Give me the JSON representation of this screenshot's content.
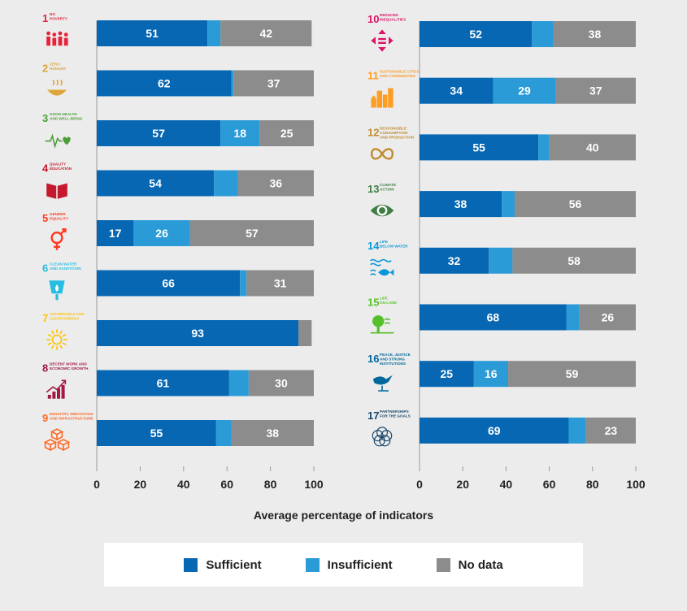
{
  "colors": {
    "sufficient": "#0767b2",
    "insufficient": "#2b9bd8",
    "no_data": "#8c8c8c",
    "axis": "#9a9a9a"
  },
  "xlabel": "Average percentage of indicators",
  "legend": [
    {
      "name": "Sufficient",
      "color": "#0767b2"
    },
    {
      "name": "Insufficient",
      "color": "#2b9bd8"
    },
    {
      "name": "No data",
      "color": "#8c8c8c"
    }
  ],
  "chart_data": [
    {
      "type": "bar",
      "orientation": "horizontal",
      "stacked": true,
      "xlim": [
        0,
        100
      ],
      "x_ticks": [
        0,
        20,
        40,
        60,
        80,
        100
      ],
      "xlabel": "Average percentage of indicators",
      "categories": [
        "1 No poverty",
        "2 Zero hunger",
        "3 Good health and well-being",
        "4 Quality education",
        "5 Gender equality",
        "6 Clean water and sanitation",
        "7 Affordable and clean energy",
        "8 Decent work and economic growth",
        "9 Industry, innovation and infrastructure"
      ],
      "series": [
        {
          "name": "Sufficient",
          "values": [
            51,
            62,
            57,
            54,
            17,
            66,
            93,
            61,
            55
          ]
        },
        {
          "name": "Insufficient",
          "values": [
            6,
            1,
            18,
            11,
            26,
            3,
            0,
            9,
            7
          ]
        },
        {
          "name": "No data",
          "values": [
            42,
            37,
            25,
            36,
            57,
            31,
            6,
            30,
            38
          ]
        }
      ],
      "data_labels": [
        [
          "51",
          "",
          "42"
        ],
        [
          "62",
          "",
          "37"
        ],
        [
          "57",
          "18",
          "25"
        ],
        [
          "54",
          "",
          "36"
        ],
        [
          "17",
          "26",
          "57"
        ],
        [
          "66",
          "",
          "31"
        ],
        [
          "93",
          "",
          ""
        ],
        [
          "61",
          "",
          "30"
        ],
        [
          "55",
          "",
          "38"
        ]
      ],
      "goals": [
        {
          "num": "1",
          "name": [
            "NO",
            "POVERTY"
          ],
          "color": "#e5243b",
          "icon": "family-icon"
        },
        {
          "num": "2",
          "name": [
            "ZERO",
            "HUNGER"
          ],
          "color": "#dda63a",
          "icon": "bowl-icon"
        },
        {
          "num": "3",
          "name": [
            "GOOD HEALTH",
            "AND WELL-BEING"
          ],
          "color": "#4c9f38",
          "icon": "heartbeat-icon"
        },
        {
          "num": "4",
          "name": [
            "QUALITY",
            "EDUCATION"
          ],
          "color": "#c5192d",
          "icon": "book-icon"
        },
        {
          "num": "5",
          "name": [
            "GENDER",
            "EQUALITY"
          ],
          "color": "#ff3a21",
          "icon": "gender-icon"
        },
        {
          "num": "6",
          "name": [
            "CLEAN WATER",
            "AND SANITATION"
          ],
          "color": "#26bde2",
          "icon": "water-drop-icon"
        },
        {
          "num": "7",
          "name": [
            "AFFORDABLE AND",
            "CLEAN ENERGY"
          ],
          "color": "#fcc30b",
          "icon": "sun-icon"
        },
        {
          "num": "8",
          "name": [
            "DECENT WORK AND",
            "ECONOMIC GROWTH"
          ],
          "color": "#a21942",
          "icon": "growth-chart-icon"
        },
        {
          "num": "9",
          "name": [
            "INDUSTRY, INNOVATION",
            "AND INFRASTRUCTURE"
          ],
          "color": "#fd6925",
          "icon": "cubes-icon"
        }
      ]
    },
    {
      "type": "bar",
      "orientation": "horizontal",
      "stacked": true,
      "xlim": [
        0,
        100
      ],
      "x_ticks": [
        0,
        20,
        40,
        60,
        80,
        100
      ],
      "xlabel": "Average percentage of indicators",
      "categories": [
        "10 Reduced inequalities",
        "11 Sustainable cities and communities",
        "12 Responsible consumption and production",
        "13 Climate action",
        "14 Life below water",
        "15 Life on land",
        "16 Peace, justice and strong institutions",
        "17 Partnerships for the goals"
      ],
      "series": [
        {
          "name": "Sufficient",
          "values": [
            52,
            34,
            55,
            38,
            32,
            68,
            25,
            69
          ]
        },
        {
          "name": "Insufficient",
          "values": [
            10,
            29,
            5,
            6,
            11,
            6,
            16,
            8
          ]
        },
        {
          "name": "No data",
          "values": [
            38,
            37,
            40,
            56,
            58,
            26,
            59,
            23
          ]
        }
      ],
      "data_labels": [
        [
          "52",
          "",
          "38"
        ],
        [
          "34",
          "29",
          "37"
        ],
        [
          "55",
          "",
          "40"
        ],
        [
          "38",
          "",
          "56"
        ],
        [
          "32",
          "",
          "58"
        ],
        [
          "68",
          "",
          "26"
        ],
        [
          "25",
          "16",
          "59"
        ],
        [
          "69",
          "",
          "23"
        ]
      ],
      "goals": [
        {
          "num": "10",
          "name": [
            "REDUCED",
            "INEQUALITIES"
          ],
          "color": "#dd1367",
          "icon": "arrows-icon"
        },
        {
          "num": "11",
          "name": [
            "SUSTAINABLE CITIES",
            "AND COMMUNITIES"
          ],
          "color": "#fd9d24",
          "icon": "city-icon"
        },
        {
          "num": "12",
          "name": [
            "RESPONSIBLE",
            "CONSUMPTION",
            "AND PRODUCTION"
          ],
          "color": "#bf8b2e",
          "icon": "infinity-icon"
        },
        {
          "num": "13",
          "name": [
            "CLIMATE",
            "ACTION"
          ],
          "color": "#3f7e44",
          "icon": "eye-globe-icon"
        },
        {
          "num": "14",
          "name": [
            "LIFE",
            "BELOW WATER"
          ],
          "color": "#0a97d9",
          "icon": "fish-icon"
        },
        {
          "num": "15",
          "name": [
            "LIFE",
            "ON LAND"
          ],
          "color": "#56c02b",
          "icon": "tree-icon"
        },
        {
          "num": "16",
          "name": [
            "PEACE, JUSTICE",
            "AND STRONG",
            "INSTITUTIONS"
          ],
          "color": "#00689d",
          "icon": "dove-icon"
        },
        {
          "num": "17",
          "name": [
            "PARTNERSHIPS",
            "FOR THE GOALS"
          ],
          "color": "#19486a",
          "icon": "rings-icon"
        }
      ]
    }
  ]
}
